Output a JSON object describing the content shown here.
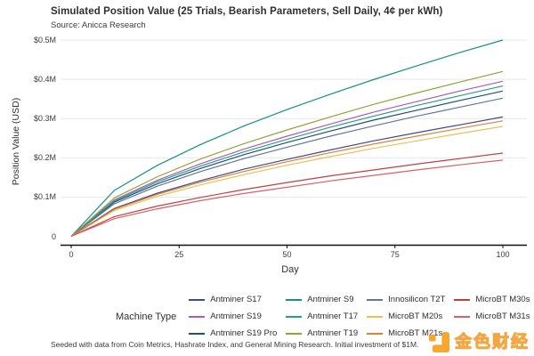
{
  "title": "Simulated Position Value (25 Trials, Bearish Parameters, Sell Daily, 4¢ per kWh)",
  "subtitle": "Source: Anicca Research",
  "caption": "Seeded with data from Coin Metrics, Hashrate Index, and General Mining Research. Initial investment of $1M.",
  "watermark": {
    "text": "金色财经",
    "logo_color": "#f5a01f"
  },
  "colors": {
    "grid": "#e7e7e7",
    "axis_line": "#111111",
    "tick_text": "#3c3c3c"
  },
  "legend": {
    "title": "Machine Type",
    "rows_per_column": 3
  },
  "chart_data": {
    "type": "line",
    "title": "Simulated Position Value (25 Trials, Bearish Parameters, Sell Daily, 4¢ per kWh)",
    "xlabel": "Day",
    "ylabel": "Position Value (USD)",
    "xlim": [
      0,
      100
    ],
    "ylim": [
      0,
      0.5
    ],
    "y_units": "$M",
    "grid": "horizontal-only",
    "legend_position": "bottom",
    "x_ticks": {
      "values": [
        0,
        25,
        50,
        75,
        100
      ],
      "labels": [
        "0",
        "25",
        "50",
        "75",
        "100"
      ]
    },
    "y_ticks": {
      "values": [
        0.5,
        0.4,
        0.3,
        0.2,
        0.1,
        0
      ],
      "labels": [
        "$0.5M",
        "$0.4M",
        "$0.3M",
        "$0.2M",
        "$0.1M",
        "0"
      ]
    },
    "x": [
      0,
      10,
      20,
      30,
      40,
      50,
      60,
      70,
      80,
      90,
      100
    ],
    "series": [
      {
        "name": "Antminer S17",
        "color": "#3e4a89",
        "values": [
          0,
          0.071,
          0.11,
          0.142,
          0.171,
          0.196,
          0.22,
          0.243,
          0.264,
          0.284,
          0.304
        ]
      },
      {
        "name": "Antminer S19",
        "color": "#ab5bc2",
        "values": [
          0,
          0.093,
          0.143,
          0.185,
          0.222,
          0.255,
          0.286,
          0.316,
          0.343,
          0.37,
          0.395
        ]
      },
      {
        "name": "Antminer S19 Pro",
        "color": "#1f5077",
        "values": [
          0,
          0.087,
          0.134,
          0.173,
          0.208,
          0.239,
          0.268,
          0.296,
          0.321,
          0.346,
          0.37
        ]
      },
      {
        "name": "Antminer S9",
        "color": "#169186",
        "values": [
          0,
          0.117,
          0.181,
          0.234,
          0.281,
          0.323,
          0.362,
          0.399,
          0.434,
          0.468,
          0.5
        ]
      },
      {
        "name": "Antminer T17",
        "color": "#2aa07c",
        "values": [
          0,
          0.09,
          0.139,
          0.179,
          0.215,
          0.247,
          0.278,
          0.306,
          0.333,
          0.358,
          0.383
        ]
      },
      {
        "name": "Antminer T19",
        "color": "#97a13b",
        "values": [
          0,
          0.098,
          0.152,
          0.197,
          0.236,
          0.271,
          0.304,
          0.336,
          0.365,
          0.393,
          0.42
        ]
      },
      {
        "name": "Innosilicon T2T",
        "color": "#6474a3",
        "values": [
          0,
          0.083,
          0.128,
          0.165,
          0.198,
          0.227,
          0.255,
          0.281,
          0.306,
          0.329,
          0.352
        ]
      },
      {
        "name": "MicroBT M20s",
        "color": "#e7c05c",
        "values": [
          0,
          0.066,
          0.102,
          0.131,
          0.157,
          0.181,
          0.203,
          0.224,
          0.243,
          0.262,
          0.28
        ]
      },
      {
        "name": "MicroBT M21s",
        "color": "#e08134",
        "values": [
          0,
          0.069,
          0.107,
          0.138,
          0.165,
          0.19,
          0.213,
          0.235,
          0.255,
          0.275,
          0.294
        ]
      },
      {
        "name": "MicroBT M30s",
        "color": "#bf4040",
        "values": [
          0,
          0.05,
          0.077,
          0.099,
          0.119,
          0.137,
          0.154,
          0.169,
          0.184,
          0.198,
          0.212
        ]
      },
      {
        "name": "MicroBT M31s",
        "color": "#db5f66",
        "values": [
          0,
          0.045,
          0.07,
          0.091,
          0.109,
          0.125,
          0.141,
          0.155,
          0.169,
          0.182,
          0.194
        ]
      }
    ]
  }
}
